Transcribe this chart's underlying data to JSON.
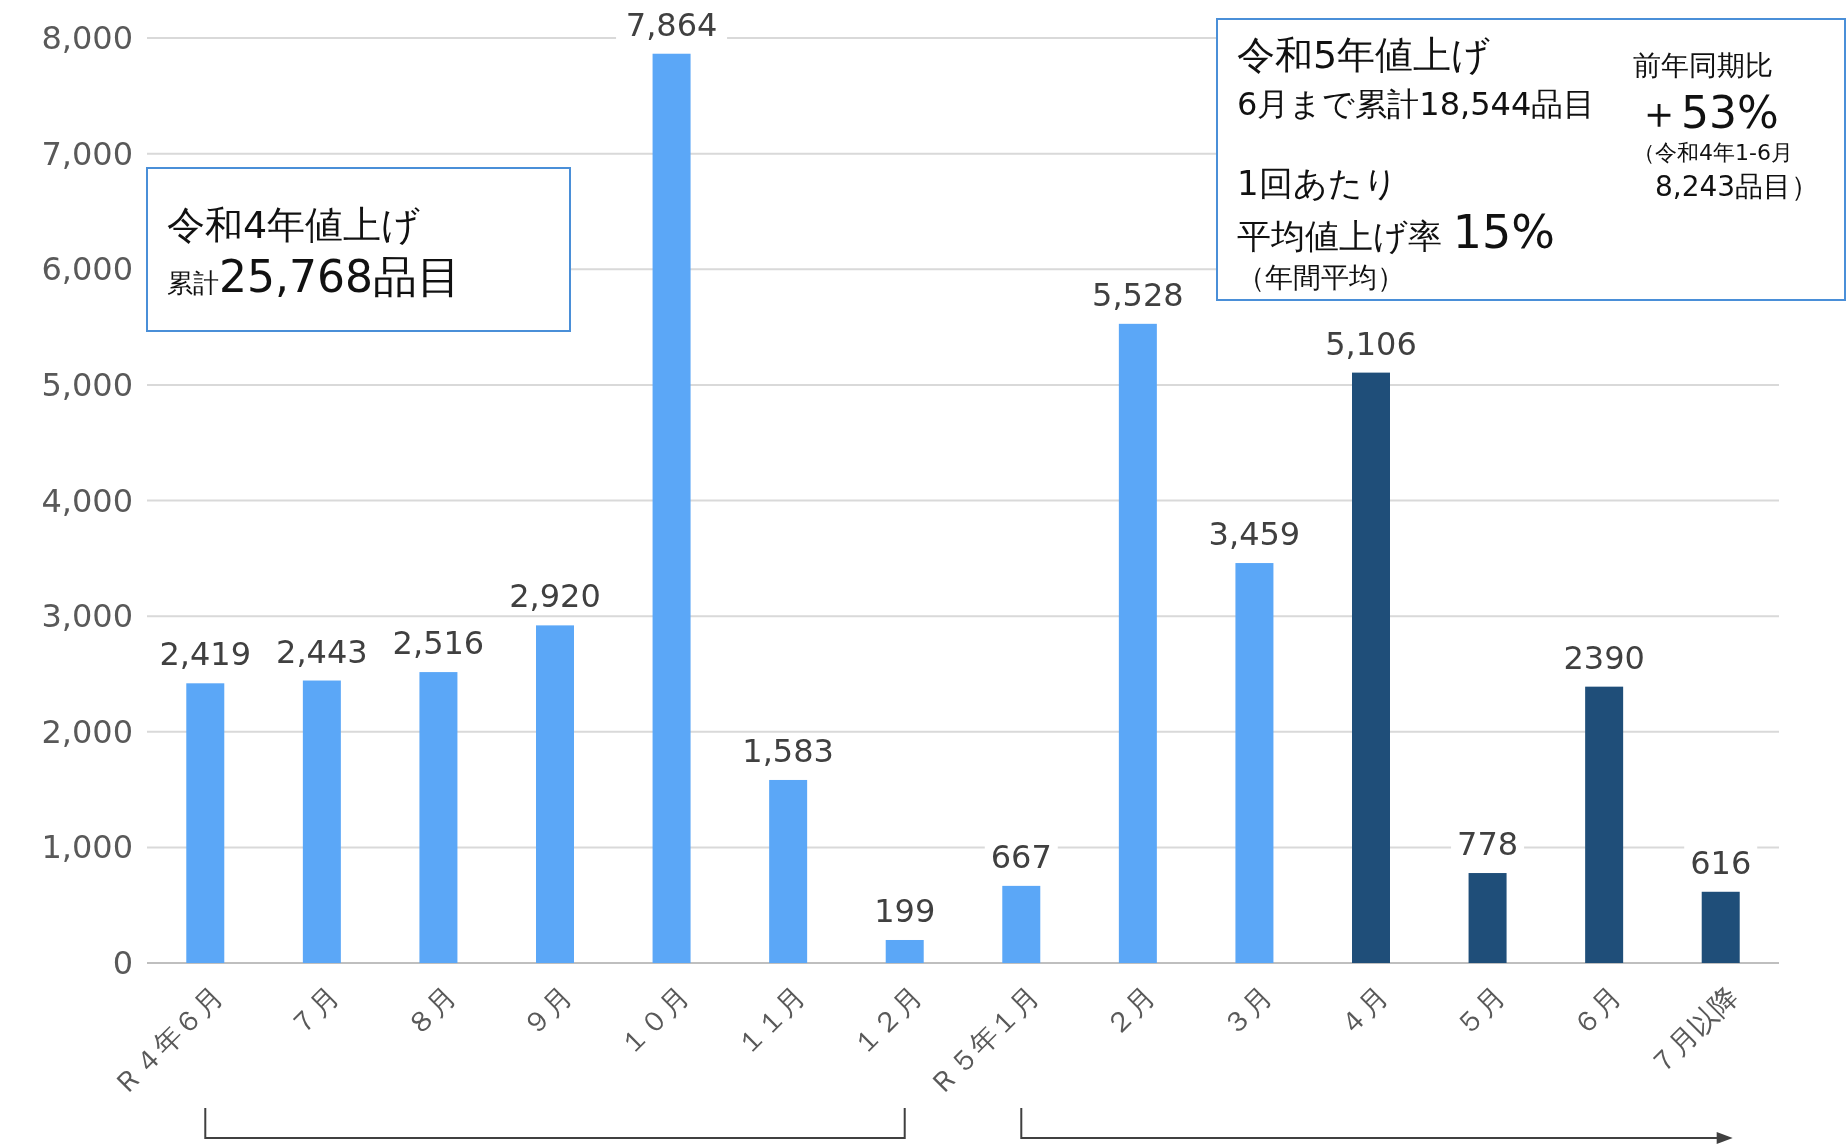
{
  "chart_data": {
    "type": "bar",
    "categories": [
      "Ｒ４年６月",
      "７月",
      "８月",
      "９月",
      "１０月",
      "１１月",
      "１２月",
      "Ｒ５年１月",
      "２月",
      "３月",
      "４月",
      "５月",
      "６月",
      "７月以降"
    ],
    "values": [
      2419,
      2443,
      2516,
      2920,
      7864,
      1583,
      199,
      667,
      5528,
      3459,
      5106,
      778,
      2390,
      616
    ],
    "colors": [
      "#5ba7f7",
      "#5ba7f7",
      "#5ba7f7",
      "#5ba7f7",
      "#5ba7f7",
      "#5ba7f7",
      "#5ba7f7",
      "#5ba7f7",
      "#5ba7f7",
      "#5ba7f7",
      "#1f4e79",
      "#1f4e79",
      "#1f4e79",
      "#1f4e79"
    ],
    "value_labels": [
      "2,419",
      "2,443",
      "2,516",
      "2,920",
      "7,864",
      "1,583",
      "199",
      "667",
      "5,528",
      "3,459",
      "5,106",
      "778",
      "2390",
      "616"
    ],
    "ylim": [
      0,
      8000
    ],
    "yticks": [
      {
        "value": 0,
        "label": "0"
      },
      {
        "value": 1000,
        "label": "1,000"
      },
      {
        "value": 2000,
        "label": "2,000"
      },
      {
        "value": 3000,
        "label": "3,000"
      },
      {
        "value": 4000,
        "label": "4,000"
      },
      {
        "value": 5000,
        "label": "5,000"
      },
      {
        "value": 6000,
        "label": "6,000"
      },
      {
        "value": 7000,
        "label": "7,000"
      },
      {
        "value": 8000,
        "label": "8,000"
      }
    ],
    "grid": "y",
    "annotations": [
      "令和4年値上げ",
      "累計25,768品目",
      "令和5年値上げ",
      "6月まで累計18,544品目",
      "1回あたり",
      "平均値上げ率 15%",
      "（年間平均）",
      "前年同期比",
      "＋53%",
      "（令和4年1-6月",
      "8,243品目）"
    ]
  }
}
